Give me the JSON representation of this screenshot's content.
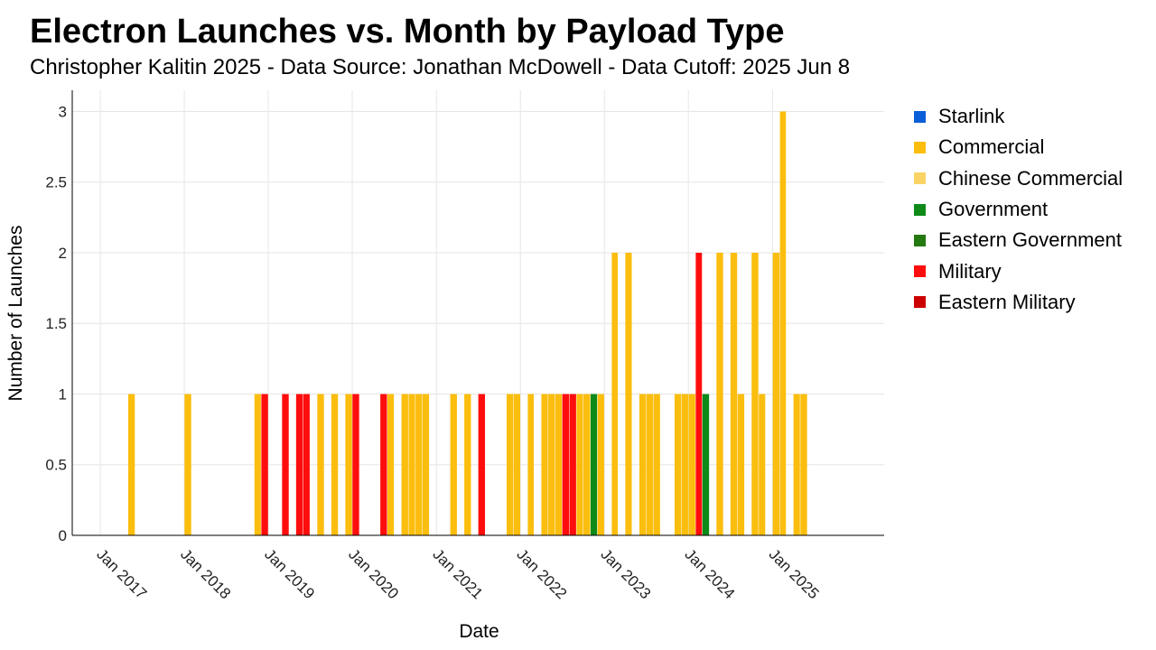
{
  "chart_data": {
    "type": "bar",
    "stacked": true,
    "title": "Electron Launches vs. Month by Payload Type",
    "subtitle": "Christopher Kalitin 2025 - Data Source: Jonathan McDowell - Data Cutoff: 2025 Jun 8",
    "xlabel": "Date",
    "ylabel": "Number of Launches",
    "x_range": [
      "2016-09-01",
      "2026-05-01"
    ],
    "ylim": [
      0,
      3.15
    ],
    "y_ticks": [
      "0",
      "0.5",
      "1",
      "1.5",
      "2",
      "2.5",
      "3"
    ],
    "x_ticks": [
      {
        "date": "2017-01-01",
        "label": "Jan 2017"
      },
      {
        "date": "2018-01-01",
        "label": "Jan 2018"
      },
      {
        "date": "2019-01-01",
        "label": "Jan 2019"
      },
      {
        "date": "2020-01-01",
        "label": "Jan 2020"
      },
      {
        "date": "2021-01-01",
        "label": "Jan 2021"
      },
      {
        "date": "2022-01-01",
        "label": "Jan 2022"
      },
      {
        "date": "2023-01-01",
        "label": "Jan 2023"
      },
      {
        "date": "2024-01-01",
        "label": "Jan 2024"
      },
      {
        "date": "2025-01-01",
        "label": "Jan 2025"
      }
    ],
    "grid": true,
    "legend_position": "right",
    "series": [
      {
        "name": "Starlink",
        "color": "#0b5fd8",
        "points": []
      },
      {
        "name": "Commercial",
        "color": "#fbbe0e",
        "points": [
          [
            "2017-05",
            1
          ],
          [
            "2018-01",
            1
          ],
          [
            "2018-11",
            1
          ],
          [
            "2019-08",
            1
          ],
          [
            "2019-10",
            1
          ],
          [
            "2019-12",
            1
          ],
          [
            "2020-06",
            1
          ],
          [
            "2020-08",
            1
          ],
          [
            "2020-09",
            1
          ],
          [
            "2020-10",
            1
          ],
          [
            "2020-11",
            1
          ],
          [
            "2021-03",
            1
          ],
          [
            "2021-05",
            1
          ],
          [
            "2021-11",
            1
          ],
          [
            "2021-12",
            1
          ],
          [
            "2022-02",
            1
          ],
          [
            "2022-04",
            1
          ],
          [
            "2022-05",
            1
          ],
          [
            "2022-06",
            1
          ],
          [
            "2022-09",
            1
          ],
          [
            "2022-10",
            1
          ],
          [
            "2022-12",
            1
          ],
          [
            "2023-02",
            2
          ],
          [
            "2023-04",
            2
          ],
          [
            "2023-06",
            1
          ],
          [
            "2023-07",
            1
          ],
          [
            "2023-08",
            1
          ],
          [
            "2023-11",
            1
          ],
          [
            "2023-12",
            1
          ],
          [
            "2024-01",
            1
          ],
          [
            "2024-05",
            2
          ],
          [
            "2024-07",
            2
          ],
          [
            "2024-08",
            1
          ],
          [
            "2024-10",
            2
          ],
          [
            "2024-11",
            1
          ],
          [
            "2025-01",
            2
          ],
          [
            "2025-02",
            3
          ],
          [
            "2025-04",
            1
          ],
          [
            "2025-05",
            1
          ]
        ]
      },
      {
        "name": "Chinese Commercial",
        "color": "#f9d465",
        "points": []
      },
      {
        "name": "Government",
        "color": "#0e8a18",
        "points": [
          [
            "2022-11",
            1
          ],
          [
            "2024-03",
            1
          ]
        ]
      },
      {
        "name": "Eastern Government",
        "color": "#247a10",
        "points": []
      },
      {
        "name": "Military",
        "color": "#ff0d0d",
        "points": [
          [
            "2018-12",
            1
          ],
          [
            "2019-03",
            1
          ],
          [
            "2019-05",
            1
          ],
          [
            "2019-06",
            1
          ],
          [
            "2020-01",
            1
          ],
          [
            "2020-05",
            1
          ],
          [
            "2021-07",
            1
          ],
          [
            "2022-07",
            1
          ],
          [
            "2022-08",
            1
          ],
          [
            "2024-02",
            2
          ]
        ]
      },
      {
        "name": "Eastern Military",
        "color": "#cc0000",
        "points": []
      }
    ]
  }
}
